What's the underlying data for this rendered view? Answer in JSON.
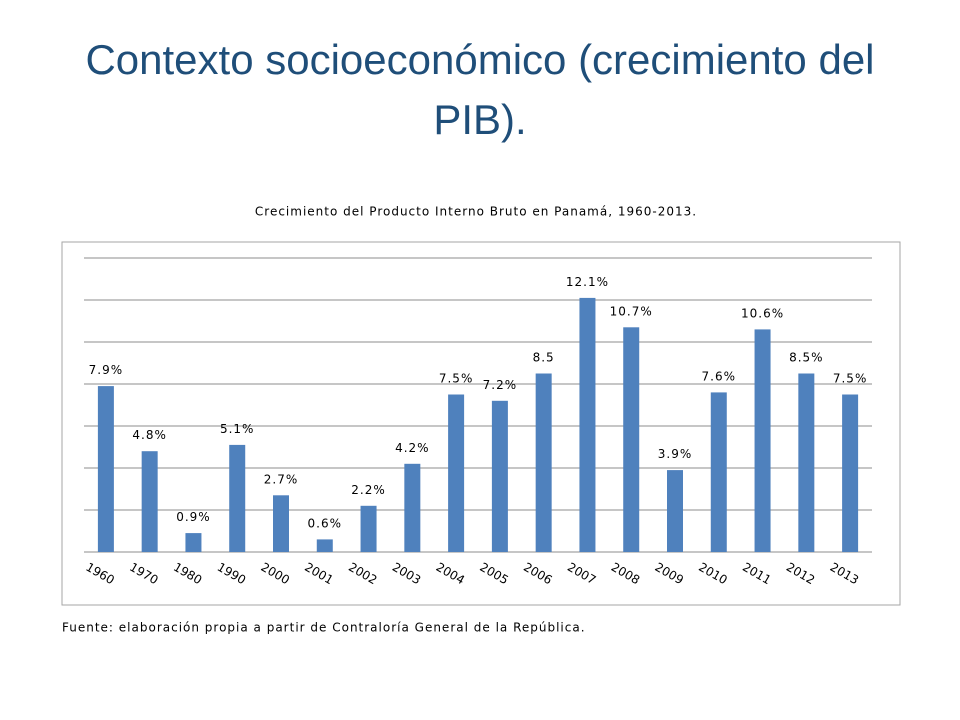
{
  "title": "Contexto socioeconómico (crecimiento del PIB).",
  "chart_data": {
    "type": "bar",
    "title": "Crecimiento del Producto Interno Bruto en Panamá, 1960-2013.",
    "categories": [
      "1960",
      "1970",
      "1980",
      "1990",
      "2000",
      "2001",
      "2002",
      "2003",
      "2004",
      "2005",
      "2006",
      "2007",
      "2008",
      "2009",
      "2010",
      "2011",
      "2012",
      "2013"
    ],
    "values": [
      7.9,
      4.8,
      0.9,
      5.1,
      2.7,
      0.6,
      2.2,
      4.2,
      7.5,
      7.2,
      8.5,
      12.1,
      10.7,
      3.9,
      7.6,
      10.6,
      8.5,
      7.5
    ],
    "value_labels": [
      "7.9%",
      "4.8%",
      "0.9%",
      "5.1%",
      "2.7%",
      "0.6%",
      "2.2%",
      "4.2%",
      "7.5%",
      "7.2%",
      "8.5",
      "12.1%",
      "10.7%",
      "3.9%",
      "7.6%",
      "10.6%",
      "8.5%",
      "7.5%"
    ],
    "color": "#4f81bd",
    "ylim": [
      0,
      14
    ],
    "yticks": [
      0,
      2,
      4,
      6,
      8,
      10,
      12,
      14
    ],
    "grid": true
  },
  "source": "Fuente: elaboración propia a partir de Contraloría General de la República."
}
